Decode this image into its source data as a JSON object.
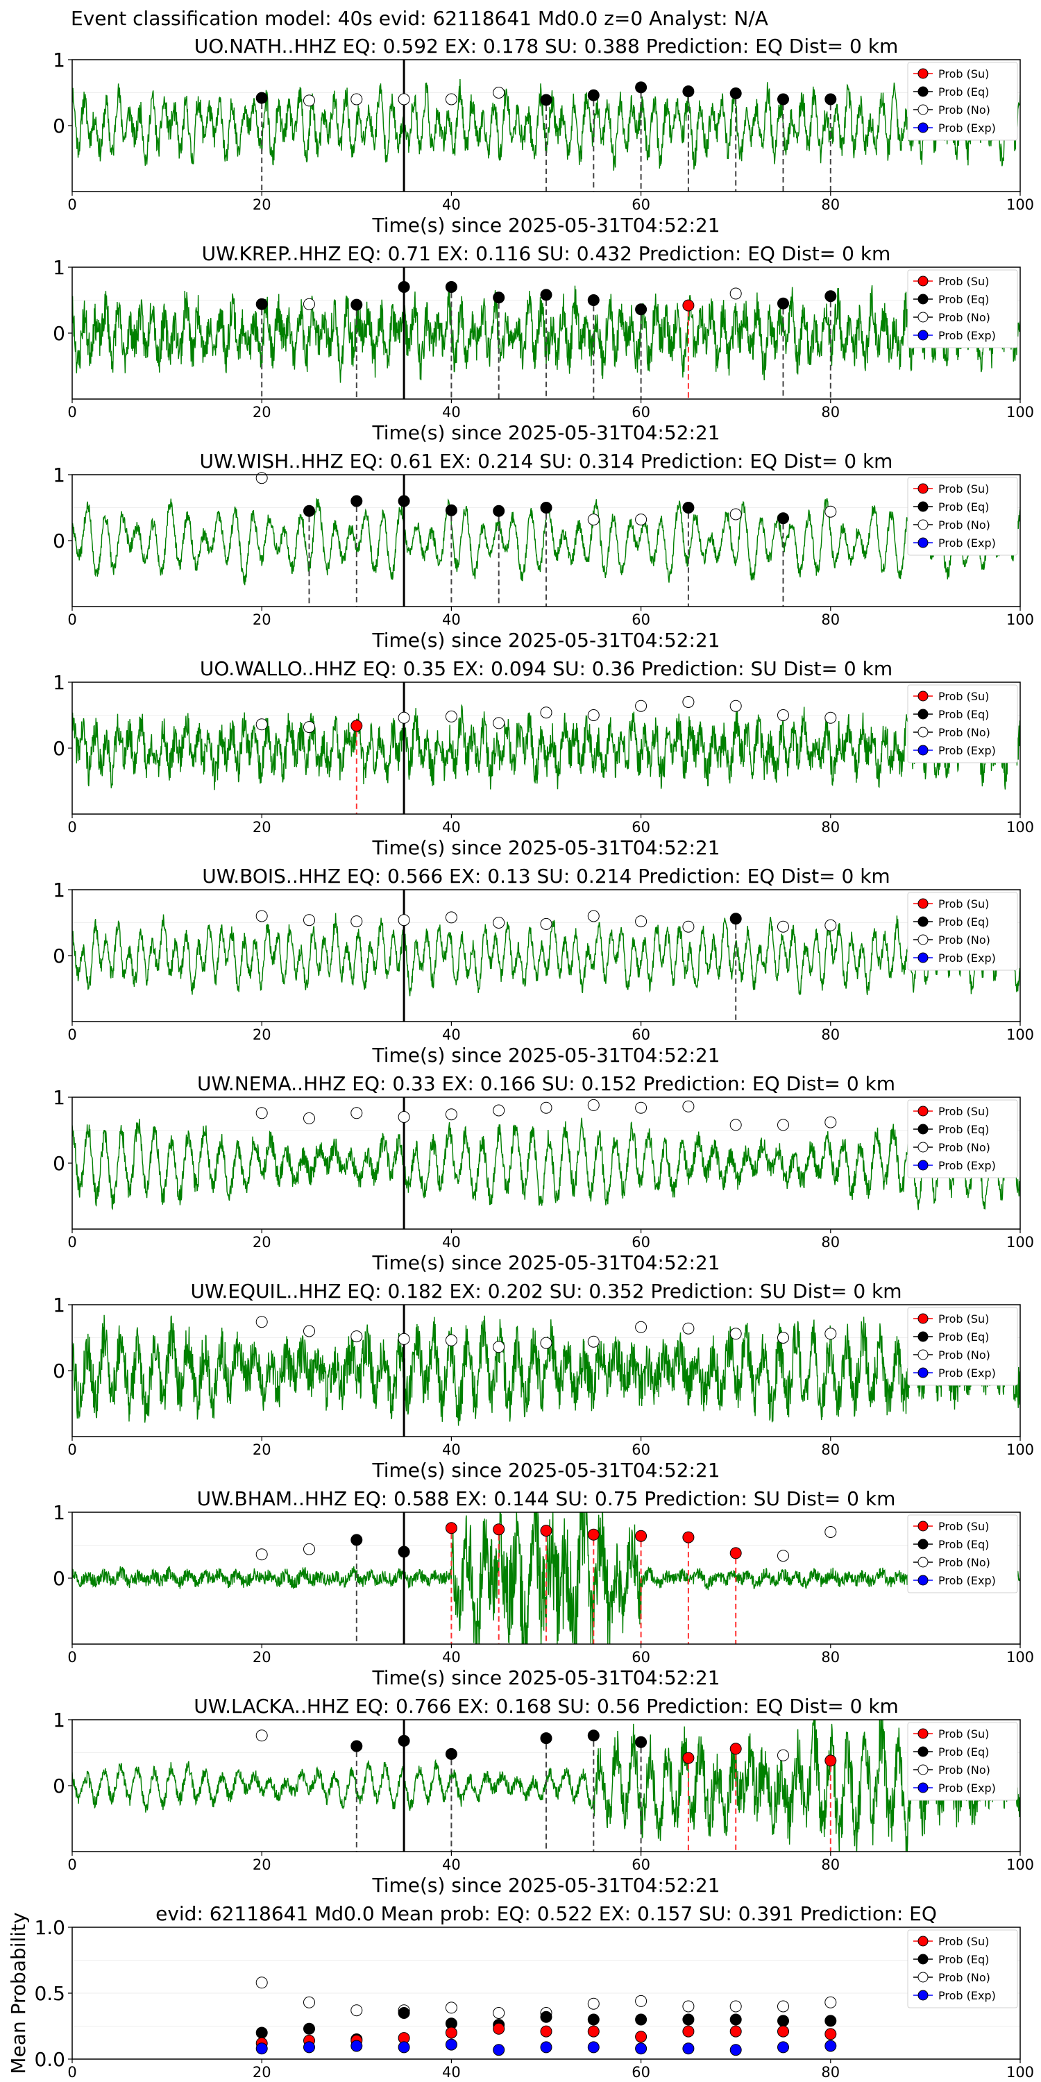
{
  "figure": {
    "suptitle": "Event classification model: 40s evid: 62118641 Md0.0 z=0 Analyst: N/A"
  },
  "legend": [
    "Prob (Su)",
    "Prob (Eq)",
    "Prob (No)",
    "Prob (Exp)"
  ],
  "colors": {
    "waveform": "#008000",
    "su": "#ff0000",
    "eq": "#000000",
    "no": "#ffffff",
    "exp": "#0000ff",
    "vline_su": "#ff3333",
    "vline_eq": "#444444",
    "origin_line": "#000000"
  },
  "chart_data": [
    {
      "type": "line",
      "title": "UO.NATH..HHZ   EQ: 0.592  EX: 0.178  SU: 0.388   Prediction: EQ    Dist= 0 km",
      "xlabel": "Time(s) since 2025-05-31T04:52:21",
      "xlim": [
        0,
        100
      ],
      "ylim": [
        -1,
        1
      ],
      "xticks": [
        0,
        20,
        40,
        60,
        80,
        100
      ],
      "yticks": [
        0,
        1
      ],
      "origin_time": 35,
      "waveform": {
        "seed": 11,
        "amp": 0.5,
        "noise": 0.18,
        "burst": null
      },
      "points": [
        {
          "t": 20,
          "p": 0.42,
          "cls": "eq"
        },
        {
          "t": 25,
          "p": 0.38,
          "cls": "no"
        },
        {
          "t": 30,
          "p": 0.4,
          "cls": "no"
        },
        {
          "t": 35,
          "p": 0.4,
          "cls": "no"
        },
        {
          "t": 40,
          "p": 0.4,
          "cls": "no"
        },
        {
          "t": 45,
          "p": 0.5,
          "cls": "no"
        },
        {
          "t": 50,
          "p": 0.39,
          "cls": "eq"
        },
        {
          "t": 55,
          "p": 0.46,
          "cls": "eq"
        },
        {
          "t": 60,
          "p": 0.58,
          "cls": "eq"
        },
        {
          "t": 65,
          "p": 0.52,
          "cls": "eq"
        },
        {
          "t": 70,
          "p": 0.49,
          "cls": "eq"
        },
        {
          "t": 75,
          "p": 0.4,
          "cls": "eq"
        },
        {
          "t": 80,
          "p": 0.4,
          "cls": "eq"
        }
      ]
    },
    {
      "type": "line",
      "title": "UW.KREP..HHZ   EQ: 0.71  EX: 0.116  SU: 0.432   Prediction: EQ    Dist= 0 km",
      "xlabel": "Time(s) since 2025-05-31T04:52:21",
      "xlim": [
        0,
        100
      ],
      "ylim": [
        -1,
        1
      ],
      "xticks": [
        0,
        20,
        40,
        60,
        80,
        100
      ],
      "yticks": [
        0,
        1
      ],
      "origin_time": 35,
      "waveform": {
        "seed": 23,
        "amp": 0.45,
        "noise": 0.28,
        "burst": null
      },
      "points": [
        {
          "t": 20,
          "p": 0.44,
          "cls": "eq"
        },
        {
          "t": 25,
          "p": 0.44,
          "cls": "no"
        },
        {
          "t": 30,
          "p": 0.43,
          "cls": "eq"
        },
        {
          "t": 35,
          "p": 0.7,
          "cls": "eq"
        },
        {
          "t": 40,
          "p": 0.7,
          "cls": "eq"
        },
        {
          "t": 45,
          "p": 0.54,
          "cls": "eq"
        },
        {
          "t": 50,
          "p": 0.58,
          "cls": "eq"
        },
        {
          "t": 55,
          "p": 0.5,
          "cls": "eq"
        },
        {
          "t": 60,
          "p": 0.36,
          "cls": "eq"
        },
        {
          "t": 65,
          "p": 0.42,
          "cls": "su"
        },
        {
          "t": 70,
          "p": 0.6,
          "cls": "no"
        },
        {
          "t": 75,
          "p": 0.45,
          "cls": "eq"
        },
        {
          "t": 80,
          "p": 0.56,
          "cls": "eq"
        }
      ]
    },
    {
      "type": "line",
      "title": "UW.WISH..HHZ   EQ: 0.61  EX: 0.214  SU: 0.314   Prediction: EQ    Dist= 0 km",
      "xlabel": "Time(s) since 2025-05-31T04:52:21",
      "xlim": [
        0,
        100
      ],
      "ylim": [
        -1,
        1
      ],
      "xticks": [
        0,
        20,
        40,
        60,
        80,
        100
      ],
      "yticks": [
        0,
        1
      ],
      "origin_time": 35,
      "waveform": {
        "seed": 37,
        "amp": 0.55,
        "noise": 0.1,
        "burst": null
      },
      "points": [
        {
          "t": 20,
          "p": 0.95,
          "cls": "no"
        },
        {
          "t": 25,
          "p": 0.45,
          "cls": "eq"
        },
        {
          "t": 30,
          "p": 0.6,
          "cls": "eq"
        },
        {
          "t": 35,
          "p": 0.6,
          "cls": "eq"
        },
        {
          "t": 40,
          "p": 0.46,
          "cls": "eq"
        },
        {
          "t": 45,
          "p": 0.45,
          "cls": "eq"
        },
        {
          "t": 50,
          "p": 0.5,
          "cls": "eq"
        },
        {
          "t": 55,
          "p": 0.32,
          "cls": "no"
        },
        {
          "t": 60,
          "p": 0.32,
          "cls": "no"
        },
        {
          "t": 65,
          "p": 0.5,
          "cls": "eq"
        },
        {
          "t": 70,
          "p": 0.4,
          "cls": "no"
        },
        {
          "t": 75,
          "p": 0.34,
          "cls": "eq"
        },
        {
          "t": 80,
          "p": 0.44,
          "cls": "no"
        }
      ]
    },
    {
      "type": "line",
      "title": "UO.WALLO..HHZ   EQ: 0.35  EX: 0.094  SU: 0.36   Prediction: SU    Dist= 0 km",
      "xlabel": "Time(s) since 2025-05-31T04:52:21",
      "xlim": [
        0,
        100
      ],
      "ylim": [
        -1,
        1
      ],
      "xticks": [
        0,
        20,
        40,
        60,
        80,
        100
      ],
      "yticks": [
        0,
        1
      ],
      "origin_time": 35,
      "waveform": {
        "seed": 41,
        "amp": 0.4,
        "noise": 0.25,
        "burst": null
      },
      "points": [
        {
          "t": 20,
          "p": 0.36,
          "cls": "no"
        },
        {
          "t": 25,
          "p": 0.32,
          "cls": "no"
        },
        {
          "t": 30,
          "p": 0.34,
          "cls": "su"
        },
        {
          "t": 35,
          "p": 0.46,
          "cls": "no"
        },
        {
          "t": 40,
          "p": 0.48,
          "cls": "no"
        },
        {
          "t": 45,
          "p": 0.38,
          "cls": "no"
        },
        {
          "t": 50,
          "p": 0.54,
          "cls": "no"
        },
        {
          "t": 55,
          "p": 0.5,
          "cls": "no"
        },
        {
          "t": 60,
          "p": 0.64,
          "cls": "no"
        },
        {
          "t": 65,
          "p": 0.7,
          "cls": "no"
        },
        {
          "t": 70,
          "p": 0.64,
          "cls": "no"
        },
        {
          "t": 75,
          "p": 0.5,
          "cls": "no"
        },
        {
          "t": 80,
          "p": 0.46,
          "cls": "no"
        }
      ]
    },
    {
      "type": "line",
      "title": "UW.BOIS..HHZ   EQ: 0.566  EX: 0.13  SU: 0.214   Prediction: EQ    Dist= 0 km",
      "xlabel": "Time(s) since 2025-05-31T04:52:21",
      "xlim": [
        0,
        100
      ],
      "ylim": [
        -1,
        1
      ],
      "xticks": [
        0,
        20,
        40,
        60,
        80,
        100
      ],
      "yticks": [
        0,
        1
      ],
      "origin_time": 35,
      "waveform": {
        "seed": 53,
        "amp": 0.5,
        "noise": 0.12,
        "burst": null
      },
      "points": [
        {
          "t": 20,
          "p": 0.6,
          "cls": "no"
        },
        {
          "t": 25,
          "p": 0.54,
          "cls": "no"
        },
        {
          "t": 30,
          "p": 0.52,
          "cls": "no"
        },
        {
          "t": 35,
          "p": 0.54,
          "cls": "no"
        },
        {
          "t": 40,
          "p": 0.58,
          "cls": "no"
        },
        {
          "t": 45,
          "p": 0.5,
          "cls": "no"
        },
        {
          "t": 50,
          "p": 0.48,
          "cls": "no"
        },
        {
          "t": 55,
          "p": 0.6,
          "cls": "no"
        },
        {
          "t": 60,
          "p": 0.52,
          "cls": "no"
        },
        {
          "t": 65,
          "p": 0.44,
          "cls": "no"
        },
        {
          "t": 70,
          "p": 0.56,
          "cls": "eq"
        },
        {
          "t": 75,
          "p": 0.44,
          "cls": "no"
        },
        {
          "t": 80,
          "p": 0.46,
          "cls": "no"
        }
      ]
    },
    {
      "type": "line",
      "title": "UW.NEMA..HHZ   EQ: 0.33  EX: 0.166  SU: 0.152   Prediction: EQ    Dist= 0 km",
      "xlabel": "Time(s) since 2025-05-31T04:52:21",
      "xlim": [
        0,
        100
      ],
      "ylim": [
        -1,
        1
      ],
      "xticks": [
        0,
        20,
        40,
        60,
        80,
        100
      ],
      "yticks": [
        0,
        1
      ],
      "origin_time": 35,
      "waveform": {
        "seed": 67,
        "amp": 0.55,
        "noise": 0.15,
        "burst": null
      },
      "points": [
        {
          "t": 20,
          "p": 0.76,
          "cls": "no"
        },
        {
          "t": 25,
          "p": 0.68,
          "cls": "no"
        },
        {
          "t": 30,
          "p": 0.76,
          "cls": "no"
        },
        {
          "t": 35,
          "p": 0.7,
          "cls": "no"
        },
        {
          "t": 40,
          "p": 0.74,
          "cls": "no"
        },
        {
          "t": 45,
          "p": 0.8,
          "cls": "no"
        },
        {
          "t": 50,
          "p": 0.84,
          "cls": "no"
        },
        {
          "t": 55,
          "p": 0.88,
          "cls": "no"
        },
        {
          "t": 60,
          "p": 0.84,
          "cls": "no"
        },
        {
          "t": 65,
          "p": 0.86,
          "cls": "no"
        },
        {
          "t": 70,
          "p": 0.58,
          "cls": "no"
        },
        {
          "t": 75,
          "p": 0.58,
          "cls": "no"
        },
        {
          "t": 80,
          "p": 0.62,
          "cls": "no"
        }
      ]
    },
    {
      "type": "line",
      "title": "UW.EQUIL..HHZ   EQ: 0.182  EX: 0.202  SU: 0.352   Prediction: SU    Dist= 0 km",
      "xlabel": "Time(s) since 2025-05-31T04:52:21",
      "xlim": [
        0,
        100
      ],
      "ylim": [
        -1,
        1
      ],
      "xticks": [
        0,
        20,
        40,
        60,
        80,
        100
      ],
      "yticks": [
        0,
        1
      ],
      "origin_time": 35,
      "waveform": {
        "seed": 79,
        "amp": 0.5,
        "noise": 0.35,
        "burst": null
      },
      "points": [
        {
          "t": 20,
          "p": 0.74,
          "cls": "no"
        },
        {
          "t": 25,
          "p": 0.6,
          "cls": "no"
        },
        {
          "t": 30,
          "p": 0.52,
          "cls": "no"
        },
        {
          "t": 35,
          "p": 0.48,
          "cls": "no"
        },
        {
          "t": 40,
          "p": 0.46,
          "cls": "no"
        },
        {
          "t": 45,
          "p": 0.36,
          "cls": "no"
        },
        {
          "t": 50,
          "p": 0.42,
          "cls": "no"
        },
        {
          "t": 55,
          "p": 0.44,
          "cls": "no"
        },
        {
          "t": 60,
          "p": 0.66,
          "cls": "no"
        },
        {
          "t": 65,
          "p": 0.64,
          "cls": "no"
        },
        {
          "t": 70,
          "p": 0.56,
          "cls": "no"
        },
        {
          "t": 75,
          "p": 0.5,
          "cls": "no"
        },
        {
          "t": 80,
          "p": 0.56,
          "cls": "no"
        }
      ]
    },
    {
      "type": "line",
      "title": "UW.BHAM..HHZ   EQ: 0.588  EX: 0.144  SU: 0.75   Prediction: SU    Dist= 0 km",
      "xlabel": "Time(s) since 2025-05-31T04:52:21",
      "xlim": [
        0,
        100
      ],
      "ylim": [
        -1,
        1
      ],
      "xticks": [
        0,
        20,
        40,
        60,
        80,
        100
      ],
      "yticks": [
        0,
        1
      ],
      "origin_time": 35,
      "waveform": {
        "seed": 97,
        "amp": 0.08,
        "noise": 0.1,
        "burst": [
          40,
          60,
          0.9
        ]
      },
      "points": [
        {
          "t": 20,
          "p": 0.36,
          "cls": "no"
        },
        {
          "t": 25,
          "p": 0.44,
          "cls": "no"
        },
        {
          "t": 30,
          "p": 0.58,
          "cls": "eq"
        },
        {
          "t": 35,
          "p": 0.4,
          "cls": "eq"
        },
        {
          "t": 40,
          "p": 0.76,
          "cls": "su"
        },
        {
          "t": 45,
          "p": 0.74,
          "cls": "su"
        },
        {
          "t": 50,
          "p": 0.72,
          "cls": "su"
        },
        {
          "t": 55,
          "p": 0.66,
          "cls": "su"
        },
        {
          "t": 60,
          "p": 0.64,
          "cls": "su"
        },
        {
          "t": 65,
          "p": 0.62,
          "cls": "su"
        },
        {
          "t": 70,
          "p": 0.38,
          "cls": "su"
        },
        {
          "t": 75,
          "p": 0.34,
          "cls": "no"
        },
        {
          "t": 80,
          "p": 0.7,
          "cls": "no"
        }
      ]
    },
    {
      "type": "line",
      "title": "UW.LACKA..HHZ   EQ: 0.766  EX: 0.168  SU: 0.56   Prediction: EQ    Dist= 0 km",
      "xlabel": "Time(s) since 2025-05-31T04:52:21",
      "xlim": [
        0,
        100
      ],
      "ylim": [
        -1,
        1
      ],
      "xticks": [
        0,
        20,
        40,
        60,
        80,
        100
      ],
      "yticks": [
        0,
        1
      ],
      "origin_time": 35,
      "waveform": {
        "seed": 103,
        "amp": 0.3,
        "noise": 0.1,
        "burst": [
          55,
          100,
          0.45
        ]
      },
      "points": [
        {
          "t": 20,
          "p": 0.76,
          "cls": "no"
        },
        {
          "t": 30,
          "p": 0.6,
          "cls": "eq"
        },
        {
          "t": 35,
          "p": 0.68,
          "cls": "eq"
        },
        {
          "t": 40,
          "p": 0.48,
          "cls": "eq"
        },
        {
          "t": 50,
          "p": 0.72,
          "cls": "eq"
        },
        {
          "t": 55,
          "p": 0.76,
          "cls": "eq"
        },
        {
          "t": 60,
          "p": 0.66,
          "cls": "eq"
        },
        {
          "t": 65,
          "p": 0.42,
          "cls": "su"
        },
        {
          "t": 70,
          "p": 0.56,
          "cls": "su"
        },
        {
          "t": 75,
          "p": 0.46,
          "cls": "no"
        },
        {
          "t": 80,
          "p": 0.38,
          "cls": "su"
        }
      ]
    },
    {
      "type": "scatter",
      "title": "evid: 62118641  Md0.0    Mean prob:    EQ: 0.522  EX: 0.157  SU: 0.391    Prediction: EQ",
      "ylabel": "Mean Probability",
      "xlim": [
        0,
        100
      ],
      "ylim": [
        0,
        1
      ],
      "xticks": [
        0,
        20,
        40,
        60,
        80,
        100
      ],
      "yticks": [
        0.0,
        0.5,
        1.0
      ],
      "series": [
        {
          "cls": "no",
          "x": [
            20,
            25,
            30,
            35,
            40,
            45,
            50,
            55,
            60,
            65,
            70,
            75,
            80
          ],
          "values": [
            0.58,
            0.43,
            0.37,
            0.37,
            0.39,
            0.35,
            0.35,
            0.42,
            0.44,
            0.4,
            0.4,
            0.4,
            0.43
          ]
        },
        {
          "cls": "eq",
          "x": [
            20,
            25,
            30,
            35,
            40,
            45,
            50,
            55,
            60,
            65,
            70,
            75,
            80
          ],
          "values": [
            0.2,
            0.23,
            0.15,
            0.35,
            0.27,
            0.26,
            0.32,
            0.3,
            0.3,
            0.3,
            0.3,
            0.29,
            0.29
          ]
        },
        {
          "cls": "su",
          "x": [
            20,
            25,
            30,
            35,
            40,
            45,
            50,
            55,
            60,
            65,
            70,
            75,
            80
          ],
          "values": [
            0.12,
            0.14,
            0.14,
            0.16,
            0.2,
            0.23,
            0.21,
            0.21,
            0.17,
            0.21,
            0.21,
            0.21,
            0.19
          ]
        },
        {
          "cls": "exp",
          "x": [
            20,
            25,
            30,
            35,
            40,
            45,
            50,
            55,
            60,
            65,
            70,
            75,
            80
          ],
          "values": [
            0.08,
            0.09,
            0.1,
            0.09,
            0.11,
            0.07,
            0.09,
            0.09,
            0.08,
            0.08,
            0.07,
            0.09,
            0.1
          ]
        }
      ]
    }
  ]
}
